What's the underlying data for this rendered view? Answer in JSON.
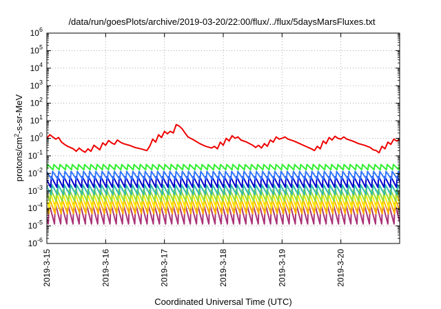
{
  "chart_data": {
    "type": "line",
    "title": "/data/run/goesPlots/archive/2019-03-20/22:00/flux/../flux/5daysMarsFluxes.txt",
    "xlabel": "Coordinated Universal Time (UTC)",
    "ylabel_parts": {
      "base": "protons/cm",
      "sup": "2",
      "rest": "-s-sr-MeV"
    },
    "x_range_days": [
      0,
      6
    ],
    "x_ticks": [
      {
        "day": 0,
        "label": "2019-3-15"
      },
      {
        "day": 1,
        "label": "2019-3-16"
      },
      {
        "day": 2,
        "label": "2019-3-17"
      },
      {
        "day": 3,
        "label": "2019-3-18"
      },
      {
        "day": 4,
        "label": "2019-3-19"
      },
      {
        "day": 5,
        "label": "2019-3-20"
      }
    ],
    "y_scale": "log",
    "ylim": [
      1e-06,
      1000000.0
    ],
    "y_ticks": [
      {
        "exp": "-6"
      },
      {
        "exp": "-5"
      },
      {
        "exp": "-4"
      },
      {
        "exp": "-3"
      },
      {
        "exp": "-2"
      },
      {
        "exp": "-1"
      },
      {
        "exp": "0"
      },
      {
        "exp": "1"
      },
      {
        "exp": "2"
      },
      {
        "exp": "3"
      },
      {
        "exp": "4"
      },
      {
        "exp": "5"
      },
      {
        "exp": "6"
      }
    ],
    "y_tick_base": "10",
    "grid": true,
    "series": [
      {
        "color": "#ee0000",
        "points": [
          [
            0.0,
            1.0
          ],
          [
            0.05,
            1.6
          ],
          [
            0.1,
            1.2
          ],
          [
            0.15,
            0.9
          ],
          [
            0.2,
            1.1
          ],
          [
            0.25,
            0.6
          ],
          [
            0.3,
            0.45
          ],
          [
            0.35,
            0.35
          ],
          [
            0.4,
            0.3
          ],
          [
            0.45,
            0.25
          ],
          [
            0.5,
            0.18
          ],
          [
            0.55,
            0.28
          ],
          [
            0.6,
            0.2
          ],
          [
            0.65,
            0.16
          ],
          [
            0.7,
            0.25
          ],
          [
            0.75,
            0.18
          ],
          [
            0.8,
            0.4
          ],
          [
            0.85,
            0.3
          ],
          [
            0.9,
            0.22
          ],
          [
            0.95,
            0.55
          ],
          [
            1.0,
            0.4
          ],
          [
            1.05,
            0.75
          ],
          [
            1.1,
            0.55
          ],
          [
            1.15,
            0.45
          ],
          [
            1.2,
            0.8
          ],
          [
            1.25,
            0.6
          ],
          [
            1.3,
            0.5
          ],
          [
            1.4,
            0.4
          ],
          [
            1.5,
            0.3
          ],
          [
            1.6,
            0.25
          ],
          [
            1.7,
            0.2
          ],
          [
            1.75,
            0.35
          ],
          [
            1.8,
            0.9
          ],
          [
            1.85,
            0.6
          ],
          [
            1.9,
            1.6
          ],
          [
            1.95,
            1.1
          ],
          [
            2.0,
            2.5
          ],
          [
            2.05,
            1.8
          ],
          [
            2.1,
            2.5
          ],
          [
            2.15,
            2.0
          ],
          [
            2.2,
            6.0
          ],
          [
            2.25,
            5.0
          ],
          [
            2.3,
            3.5
          ],
          [
            2.35,
            2.0
          ],
          [
            2.4,
            1.2
          ],
          [
            2.5,
            0.8
          ],
          [
            2.6,
            0.5
          ],
          [
            2.7,
            0.35
          ],
          [
            2.8,
            0.28
          ],
          [
            2.85,
            0.35
          ],
          [
            2.9,
            0.25
          ],
          [
            2.95,
            0.6
          ],
          [
            3.0,
            0.4
          ],
          [
            3.05,
            1.0
          ],
          [
            3.1,
            0.7
          ],
          [
            3.15,
            1.4
          ],
          [
            3.2,
            1.0
          ],
          [
            3.25,
            1.2
          ],
          [
            3.3,
            0.8
          ],
          [
            3.4,
            0.6
          ],
          [
            3.5,
            0.4
          ],
          [
            3.55,
            0.3
          ],
          [
            3.6,
            0.4
          ],
          [
            3.65,
            0.28
          ],
          [
            3.7,
            0.5
          ],
          [
            3.75,
            0.35
          ],
          [
            3.8,
            0.8
          ],
          [
            3.85,
            0.6
          ],
          [
            3.9,
            1.2
          ],
          [
            3.95,
            0.9
          ],
          [
            4.0,
            1.0
          ],
          [
            4.05,
            1.2
          ],
          [
            4.1,
            0.9
          ],
          [
            4.2,
            0.7
          ],
          [
            4.3,
            0.5
          ],
          [
            4.4,
            0.35
          ],
          [
            4.5,
            0.25
          ],
          [
            4.55,
            0.2
          ],
          [
            4.6,
            0.35
          ],
          [
            4.65,
            0.25
          ],
          [
            4.7,
            0.7
          ],
          [
            4.75,
            0.5
          ],
          [
            4.8,
            1.1
          ],
          [
            4.85,
            0.8
          ],
          [
            4.9,
            1.3
          ],
          [
            4.95,
            1.0
          ],
          [
            5.0,
            0.9
          ],
          [
            5.05,
            1.2
          ],
          [
            5.1,
            0.9
          ],
          [
            5.2,
            0.7
          ],
          [
            5.3,
            0.5
          ],
          [
            5.4,
            0.4
          ],
          [
            5.5,
            0.3
          ],
          [
            5.55,
            0.22
          ],
          [
            5.6,
            0.2
          ],
          [
            5.65,
            0.15
          ],
          [
            5.7,
            0.35
          ],
          [
            5.75,
            0.25
          ],
          [
            5.8,
            0.6
          ],
          [
            5.85,
            0.45
          ],
          [
            5.9,
            0.9
          ],
          [
            5.95,
            0.7
          ],
          [
            6.0,
            0.85
          ]
        ]
      },
      {
        "color": "#33ee33",
        "sawtooth": {
          "hi": 0.032,
          "lo": 0.016,
          "period": 0.105,
          "phase": 0.0
        }
      },
      {
        "color": "#3377ff",
        "sawtooth": {
          "hi": 0.013,
          "lo": 0.0045,
          "period": 0.105,
          "phase": 0.02
        }
      },
      {
        "color": "#0000cc",
        "sawtooth": {
          "hi": 0.0065,
          "lo": 0.0016,
          "period": 0.105,
          "phase": 0.04
        }
      },
      {
        "color": "#33bbaa",
        "sawtooth": {
          "hi": 0.0022,
          "lo": 0.0006,
          "period": 0.105,
          "phase": 0.03
        }
      },
      {
        "color": "#99dd33",
        "sawtooth": {
          "hi": 0.0012,
          "lo": 0.00025,
          "period": 0.105,
          "phase": 0.05
        }
      },
      {
        "color": "#ffee00",
        "sawtooth": {
          "hi": 0.0008,
          "lo": 0.0001,
          "period": 0.105,
          "phase": 0.06
        }
      },
      {
        "color": "#ffaa00",
        "sawtooth": {
          "hi": 0.00035,
          "lo": 5e-05,
          "period": 0.105,
          "phase": 0.07
        }
      },
      {
        "color": "#aa3377",
        "sawtooth": {
          "hi": 0.0002,
          "lo": 1.3e-05,
          "period": 0.105,
          "phase": 0.08
        }
      }
    ]
  }
}
